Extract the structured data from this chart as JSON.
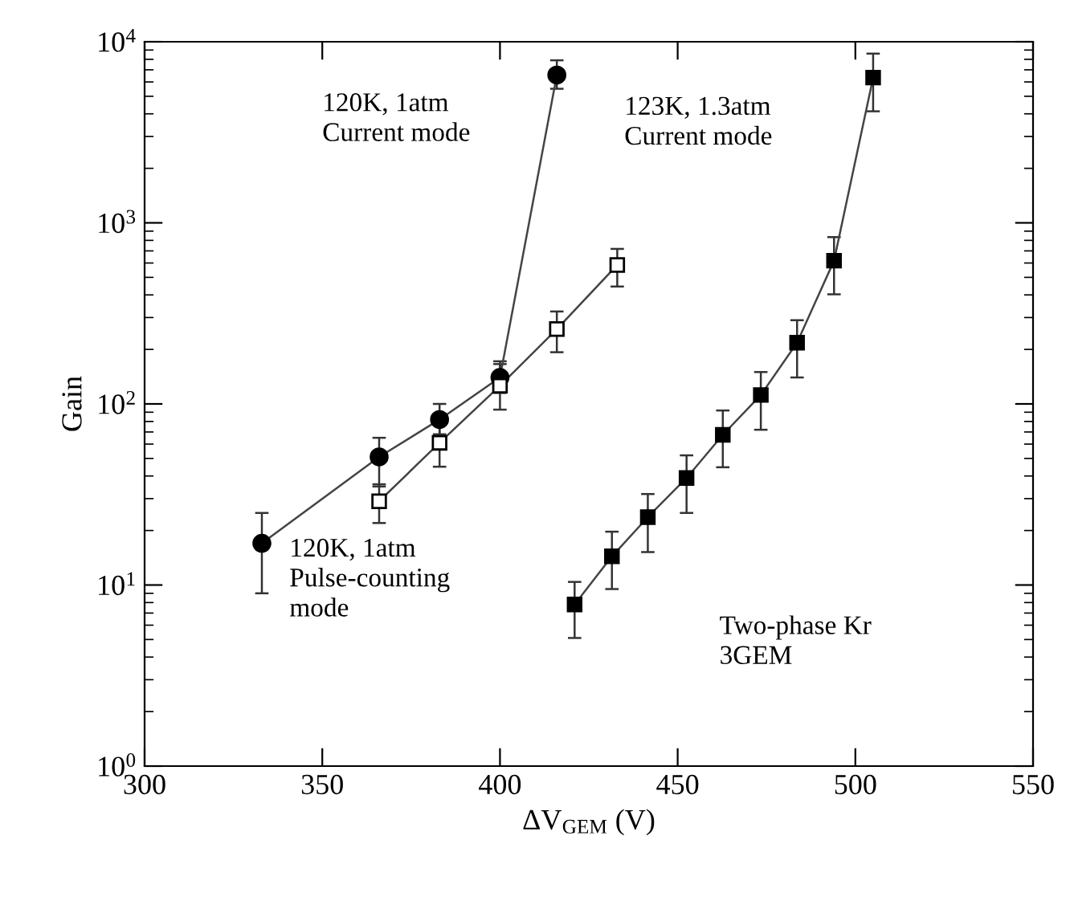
{
  "chart_data": {
    "type": "line",
    "xlabel": "ΔV$_{GEM}$ (V)",
    "ylabel": "Gain",
    "log": "y",
    "grid": false,
    "legend": false,
    "line_style": "solid",
    "xlim": [
      300,
      550
    ],
    "xticks": [
      300,
      350,
      400,
      450,
      500,
      550
    ],
    "ylim": [
      1,
      10000
    ],
    "yticks": [
      {
        "value": 1,
        "label": "10$^{0}$"
      },
      {
        "value": 10,
        "label": "10$^{1}$"
      },
      {
        "value": 100,
        "label": "10$^{2}$"
      },
      {
        "value": 1000,
        "label": "10$^{3}$"
      },
      {
        "value": 10000,
        "label": "10$^{4}$"
      }
    ],
    "series": [
      {
        "color": "#000000",
        "marker": "circle",
        "x": [
          333,
          366,
          383,
          400,
          416
        ],
        "values": [
          17,
          51,
          82,
          140,
          6550
        ],
        "errors": [
          [
            9,
            25
          ],
          [
            35,
            65
          ],
          [
            68,
            100
          ],
          [
            115,
            172
          ],
          [
            5500,
            7900
          ]
        ]
      },
      {
        "color": "#ffffff",
        "marker": "square",
        "x": [
          366,
          383,
          400,
          416,
          433
        ],
        "values": [
          29,
          61,
          126,
          259,
          585
        ],
        "errors": [
          [
            22,
            36
          ],
          [
            45,
            79
          ],
          [
            93,
            166
          ],
          [
            193,
            324
          ],
          [
            445,
            718
          ]
        ]
      },
      {
        "color": "#000000",
        "marker": "square",
        "x": [
          421,
          431.5,
          441.6,
          452.5,
          462.7,
          473.4,
          483.6,
          494,
          505
        ],
        "values": [
          7.8,
          14.4,
          23.7,
          39,
          67.5,
          112,
          218,
          618,
          6340
        ],
        "errors": [
          [
            5.1,
            10.4
          ],
          [
            9.5,
            19.7
          ],
          [
            15.2,
            31.8
          ],
          [
            25,
            52
          ],
          [
            44.7,
            92
          ],
          [
            72,
            150
          ],
          [
            140,
            290
          ],
          [
            403,
            834
          ],
          [
            4130,
            8600
          ]
        ]
      }
    ],
    "annotations": [
      "120K, 1atm\nCurrent mode",
      "123K, 1.3atm\nCurrent mode",
      "120K, 1atm\nPulse-counting\nmode",
      "Two-phase Kr\n3GEM"
    ]
  }
}
